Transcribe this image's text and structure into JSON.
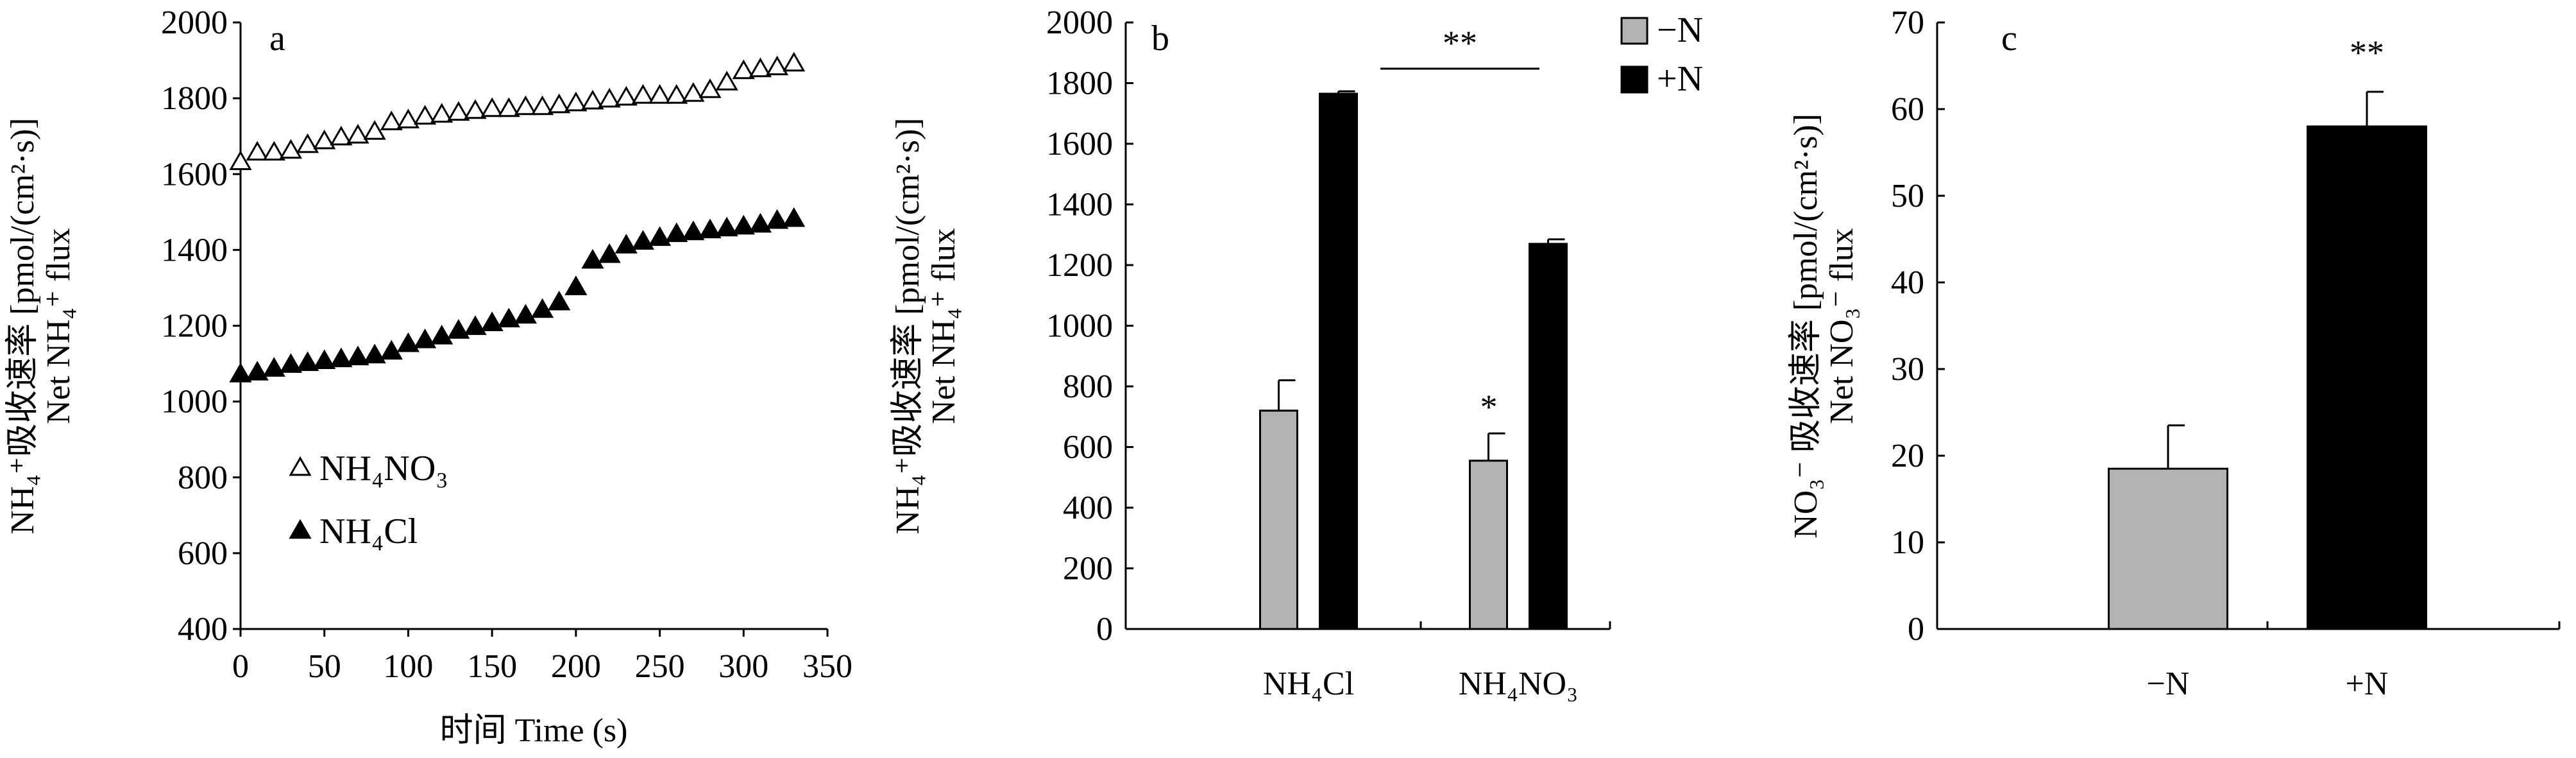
{
  "chart_data": [
    {
      "panel": "a",
      "type": "scatter",
      "xlabel": "时间 Time (s)",
      "ylabel_cn": "NH₄⁺吸收速率 [pmol/(cm²·s)]",
      "ylabel_en": "Net NH₄⁺ flux",
      "xlim": [
        0,
        350
      ],
      "ylim": [
        400,
        2000
      ],
      "xticks": [
        0,
        50,
        100,
        150,
        200,
        250,
        300,
        350
      ],
      "yticks": [
        400,
        600,
        800,
        1000,
        1200,
        1400,
        1600,
        1800,
        2000
      ],
      "legend_position": "bottom-left",
      "series": [
        {
          "name": "NH₄NO₃",
          "marker": "open-triangle",
          "x": [
            0,
            10,
            20,
            30,
            40,
            50,
            60,
            70,
            80,
            90,
            100,
            110,
            120,
            130,
            140,
            150,
            160,
            170,
            180,
            190,
            200,
            210,
            220,
            230,
            240,
            250,
            260,
            270,
            280,
            290,
            300,
            310,
            320,
            330
          ],
          "y": [
            1630,
            1655,
            1655,
            1660,
            1675,
            1685,
            1695,
            1700,
            1710,
            1735,
            1740,
            1750,
            1755,
            1760,
            1765,
            1770,
            1770,
            1775,
            1775,
            1780,
            1785,
            1790,
            1795,
            1800,
            1805,
            1805,
            1805,
            1810,
            1820,
            1840,
            1870,
            1875,
            1880,
            1890
          ]
        },
        {
          "name": "NH₄Cl",
          "marker": "filled-triangle",
          "x": [
            0,
            10,
            20,
            30,
            40,
            50,
            60,
            70,
            80,
            90,
            100,
            110,
            120,
            130,
            140,
            150,
            160,
            170,
            180,
            190,
            200,
            210,
            220,
            230,
            240,
            250,
            260,
            270,
            280,
            290,
            300,
            310,
            320,
            330
          ],
          "y": [
            1070,
            1075,
            1085,
            1095,
            1100,
            1105,
            1110,
            1115,
            1120,
            1130,
            1150,
            1160,
            1170,
            1185,
            1195,
            1205,
            1215,
            1225,
            1240,
            1260,
            1300,
            1370,
            1385,
            1410,
            1420,
            1430,
            1440,
            1445,
            1450,
            1455,
            1460,
            1465,
            1475,
            1480
          ]
        }
      ]
    },
    {
      "panel": "b",
      "type": "bar",
      "categories": [
        "NH₄Cl",
        "NH₄NO₃"
      ],
      "ylabel_cn": "NH₄⁺吸收速率 [pmol/(cm²·s)]",
      "ylabel_en": "Net NH₄⁺ flux",
      "ylim": [
        0,
        2000
      ],
      "yticks": [
        0,
        200,
        400,
        600,
        800,
        1000,
        1200,
        1400,
        1600,
        1800,
        2000
      ],
      "legend_position": "top-right",
      "series": [
        {
          "name": "−N",
          "color": "#b3b3b3",
          "values": [
            720,
            555
          ],
          "errors": [
            100,
            90
          ]
        },
        {
          "name": "+N",
          "color": "#000000",
          "values": [
            1765,
            1270
          ],
          "errors": [
            8,
            15
          ]
        }
      ],
      "annotations": [
        {
          "text": "**",
          "target": "bracket over +N bars"
        },
        {
          "text": "*",
          "target": "NH₄NO₃ −N"
        }
      ]
    },
    {
      "panel": "c",
      "type": "bar",
      "categories": [
        "−N",
        "+N"
      ],
      "ylabel_cn": "NO₃⁻ 吸收速率 [pmol/(cm²·s)]",
      "ylabel_en": "Net NO₃⁻ flux",
      "ylim": [
        0,
        70
      ],
      "yticks": [
        0,
        10,
        20,
        30,
        40,
        50,
        60,
        70
      ],
      "values": [
        18.5,
        58
      ],
      "errors": [
        5,
        4
      ],
      "colors": [
        "#b3b3b3",
        "#000000"
      ],
      "annotations": [
        {
          "text": "**",
          "target": "+N"
        }
      ]
    }
  ]
}
